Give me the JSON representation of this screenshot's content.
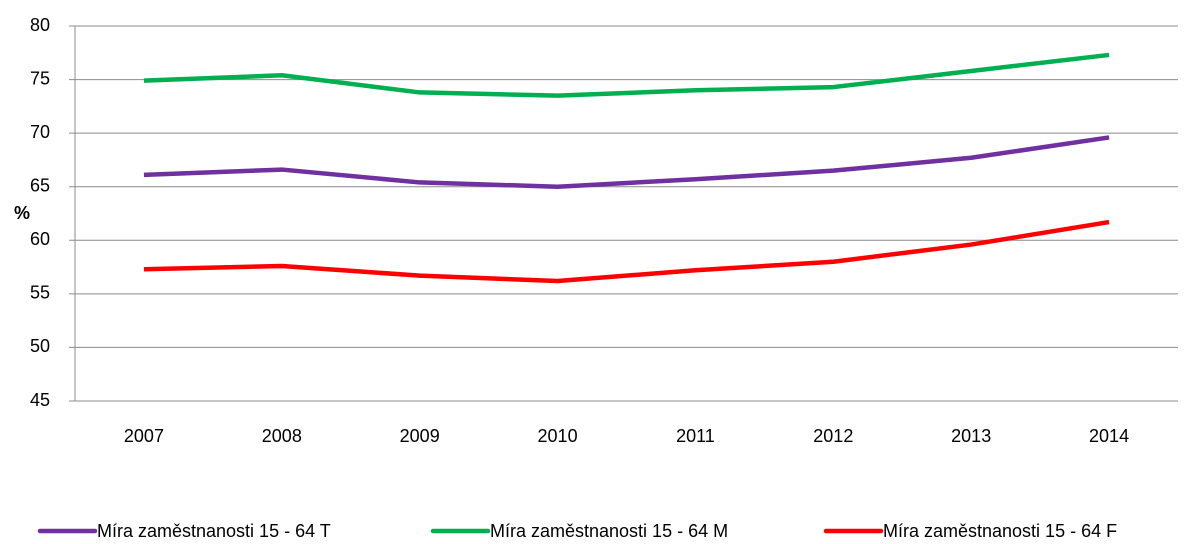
{
  "chart_data": {
    "type": "line",
    "y_label": "%",
    "categories": [
      "2007",
      "2008",
      "2009",
      "2010",
      "2011",
      "2012",
      "2013",
      "2014"
    ],
    "series": [
      {
        "name": "Míra zaměstnanosti 15 - 64 T",
        "color": "#7030a0",
        "values": [
          66.1,
          66.6,
          65.4,
          65.0,
          65.7,
          66.5,
          67.7,
          69.6
        ]
      },
      {
        "name": "Míra zaměstnanosti 15 - 64 M",
        "color": "#00b050",
        "values": [
          74.9,
          75.4,
          73.8,
          73.5,
          74.0,
          74.3,
          75.8,
          77.3
        ]
      },
      {
        "name": "Míra zaměstnanosti 15 - 64 F",
        "color": "#ff0000",
        "values": [
          57.3,
          57.6,
          56.7,
          56.2,
          57.2,
          58.0,
          59.6,
          61.7
        ]
      }
    ],
    "ylim": [
      45,
      80
    ],
    "yticks": [
      45,
      50,
      55,
      60,
      65,
      70,
      75,
      80
    ],
    "grid": true,
    "legend": "bottom"
  }
}
